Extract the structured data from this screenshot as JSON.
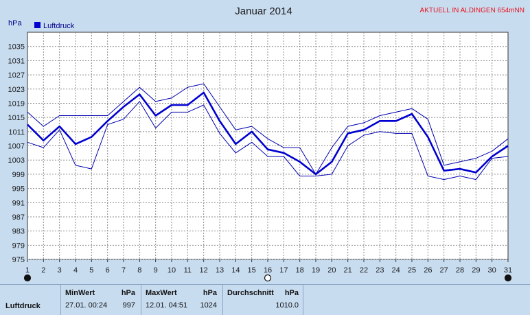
{
  "header": {
    "title": "Januar 2014",
    "location": "AKTUELL IN ALDINGEN 654mNN",
    "unit": "hPa",
    "legend": "Luftdruck"
  },
  "colors": {
    "series": "#0000d0",
    "band": "#0000b0",
    "plot_bg": "#ffffff",
    "page_bg": "#c8dcf0"
  },
  "chart_data": {
    "type": "line",
    "title": "Januar 2014",
    "ylabel": "hPa",
    "xlabel": "",
    "ylim": [
      975,
      1039
    ],
    "yticks": [
      975,
      979,
      983,
      987,
      991,
      995,
      999,
      1003,
      1007,
      1011,
      1015,
      1019,
      1023,
      1027,
      1031,
      1035
    ],
    "x": [
      1,
      2,
      3,
      4,
      5,
      6,
      7,
      8,
      9,
      10,
      11,
      12,
      13,
      14,
      15,
      16,
      17,
      18,
      19,
      20,
      21,
      22,
      23,
      24,
      25,
      26,
      27,
      28,
      29,
      30,
      31
    ],
    "grid": true,
    "legend_position": "top-left",
    "markers": [
      1,
      16,
      31
    ],
    "series": [
      {
        "name": "Luftdruck",
        "values": [
          1013,
          1008.5,
          1012.5,
          1007.5,
          1009.5,
          1014,
          1018,
          1021.5,
          1015.5,
          1018.5,
          1018.5,
          1022,
          1014,
          1007.5,
          1011,
          1006,
          1005,
          1002.5,
          999,
          1002.5,
          1010.5,
          1011.5,
          1014,
          1014,
          1016,
          1009.5,
          1000,
          1000.5,
          999.5,
          1004,
          1007
        ]
      },
      {
        "values": [
          1016.5,
          1012.5,
          1015.5,
          1015.5,
          1015.5,
          1015.5,
          1019.5,
          1023.5,
          1019.5,
          1020.5,
          1023.5,
          1024.5,
          1018,
          1011.5,
          1012.5,
          1009,
          1006.5,
          1006.5,
          999,
          1006.5,
          1012.5,
          1013.5,
          1015.5,
          1016.5,
          1017.5,
          1014.5,
          1001.5,
          1002.5,
          1003.5,
          1005.5,
          1009
        ]
      },
      {
        "values": [
          1008,
          1006.5,
          1011.5,
          1001.5,
          1000.5,
          1013,
          1014.5,
          1019.5,
          1012,
          1016.5,
          1016.5,
          1018.5,
          1010.5,
          1005,
          1008,
          1004,
          1004,
          998.5,
          998.5,
          999,
          1007,
          1010,
          1011,
          1010.5,
          1010.5,
          998.5,
          997.5,
          998.5,
          997.5,
          1003.5,
          1004
        ]
      }
    ]
  },
  "stats": {
    "row_label": "Luftdruck",
    "min": {
      "header": "MinWert",
      "unit": "hPa",
      "time": "27.01.  00:24",
      "value": "997"
    },
    "max": {
      "header": "MaxWert",
      "unit": "hPa",
      "time": "12.01.  04:51",
      "value": "1024"
    },
    "avg": {
      "header": "Durchschnitt",
      "unit": "hPa",
      "value": "1010.0"
    }
  }
}
